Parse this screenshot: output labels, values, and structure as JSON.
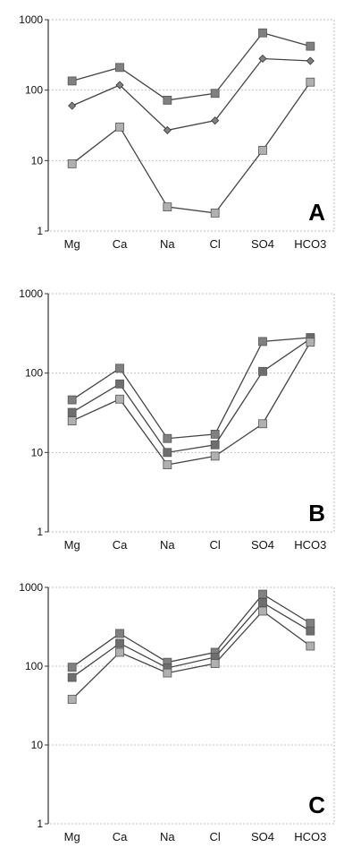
{
  "chart_data": [
    {
      "type": "line",
      "panel_label": "A",
      "y_scale": "log",
      "ylim": [
        1,
        1000
      ],
      "y_ticks": [
        "1",
        "10",
        "100",
        "1000"
      ],
      "categories": [
        "Mg",
        "Ca",
        "Na",
        "Cl",
        "SO4",
        "HCO3"
      ],
      "grid": "dotted",
      "series": [
        {
          "values": [
            135,
            210,
            72,
            90,
            650,
            420
          ],
          "marker": "square",
          "color": "#808080"
        },
        {
          "values": [
            60,
            118,
            27,
            37,
            280,
            260
          ],
          "marker": "diamond",
          "color": "#808080"
        },
        {
          "values": [
            9,
            30,
            2.2,
            1.8,
            14,
            130
          ],
          "marker": "square",
          "color": "#b0b0b0"
        }
      ]
    },
    {
      "type": "line",
      "panel_label": "B",
      "y_scale": "log",
      "ylim": [
        1,
        1000
      ],
      "y_ticks": [
        "1",
        "10",
        "100",
        "1000"
      ],
      "categories": [
        "Mg",
        "Ca",
        "Na",
        "Cl",
        "SO4",
        "HCO3"
      ],
      "grid": "dotted",
      "series": [
        {
          "values": [
            46,
            115,
            15,
            17,
            250,
            280
          ],
          "marker": "square",
          "color": "#808080"
        },
        {
          "values": [
            32,
            73,
            10,
            12.5,
            105,
            270
          ],
          "marker": "square",
          "color": "#6e6e6e"
        },
        {
          "values": [
            25,
            47,
            7,
            9,
            23,
            245
          ],
          "marker": "square",
          "color": "#b0b0b0"
        }
      ]
    },
    {
      "type": "line",
      "panel_label": "C",
      "y_scale": "log",
      "ylim": [
        1,
        1000
      ],
      "y_ticks": [
        "1",
        "10",
        "100",
        "1000"
      ],
      "categories": [
        "Mg",
        "Ca",
        "Na",
        "Cl",
        "SO4",
        "HCO3"
      ],
      "grid": "dotted",
      "series": [
        {
          "values": [
            97,
            260,
            112,
            150,
            820,
            350
          ],
          "marker": "square",
          "color": "#808080"
        },
        {
          "values": [
            72,
            195,
            95,
            130,
            640,
            280
          ],
          "marker": "square",
          "color": "#6e6e6e"
        },
        {
          "values": [
            38,
            150,
            82,
            108,
            500,
            180
          ],
          "marker": "square",
          "color": "#b0b0b0"
        }
      ]
    }
  ]
}
